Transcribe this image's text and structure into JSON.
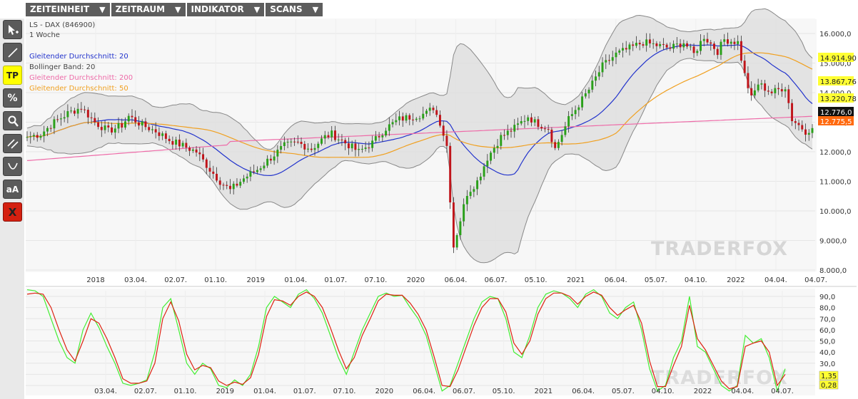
{
  "menu": [
    {
      "label": "ZEITEINHEIT",
      "icon": "triangle-down-icon"
    },
    {
      "label": "ZEITRAUM",
      "icon": "triangle-down-icon"
    },
    {
      "label": "INDIKATOR",
      "icon": "triangle-down-icon"
    },
    {
      "label": "SCANS",
      "icon": "triangle-down-icon"
    }
  ],
  "tools": [
    {
      "name": "cursor-tool",
      "icon": "cursor-plus-icon",
      "label": ""
    },
    {
      "name": "line-tool",
      "icon": "line-icon",
      "label": ""
    },
    {
      "name": "tp-tool",
      "icon": "tp-icon",
      "label": "TP"
    },
    {
      "name": "percent-tool",
      "icon": "percent-icon",
      "label": "%"
    },
    {
      "name": "zoom-tool",
      "icon": "magnifier-icon",
      "label": ""
    },
    {
      "name": "parallel-lines-tool",
      "icon": "parallel-lines-icon",
      "label": ""
    },
    {
      "name": "curve-tool",
      "icon": "curve-icon",
      "label": ""
    },
    {
      "name": "text-tool",
      "icon": "text-size-icon",
      "label": "aA"
    },
    {
      "name": "delete-tool",
      "icon": "close-icon",
      "label": "X"
    }
  ],
  "chart_data": [
    {
      "type": "candlestick",
      "title": "LS - DAX (846900)",
      "subtitle": "1 Woche",
      "legend": [
        {
          "label": "Gleitender Durchschnitt: 20",
          "color": "#2233cc"
        },
        {
          "label": "Bollinger Band: 20",
          "color": "#444444"
        },
        {
          "label": "Gleitender Durchschnitt: 200",
          "color": "#ee6ba8"
        },
        {
          "label": "Gleitender Durchschnitt: 50",
          "color": "#f0a020"
        }
      ],
      "legend_position": "top-left",
      "y_ticks": [
        "16.000,0",
        "15.000,0",
        "14.000,0",
        "13.000,0",
        "12.000,0",
        "11.000,0",
        "10.000,0",
        "9.000,0",
        "8.000,0"
      ],
      "ylim": [
        8000,
        16400
      ],
      "x_ticks": [
        "2018",
        "03.04.",
        "02.07.",
        "01.10.",
        "2019",
        "01.04.",
        "01.07.",
        "07.10.",
        "2020",
        "06.04.",
        "06.07.",
        "05.10.",
        "2021",
        "06.04.",
        "05.07.",
        "04.10.",
        "2022",
        "04.04.",
        "04.07."
      ],
      "price_labels": [
        {
          "text": "14.914,90",
          "bg": "#ffff33",
          "color": "#222222"
        },
        {
          "text": "13.867,76",
          "bg": "#ffff33",
          "color": "#222222"
        },
        {
          "text": "13.220,78",
          "bg": "#ffff33",
          "color": "#222222"
        },
        {
          "text": "12.776,0",
          "bg": "#111111",
          "color": "#ffffff"
        },
        {
          "text": "12.775,5",
          "bg": "#ff6a10",
          "color": "#ffffff"
        }
      ],
      "anchors": [
        [
          0,
          12500
        ],
        [
          4,
          12600
        ],
        [
          8,
          13000
        ],
        [
          12,
          13300
        ],
        [
          16,
          13500
        ],
        [
          20,
          13000
        ],
        [
          24,
          12700
        ],
        [
          28,
          12900
        ],
        [
          30,
          13200
        ],
        [
          34,
          12900
        ],
        [
          38,
          12700
        ],
        [
          42,
          12400
        ],
        [
          46,
          12200
        ],
        [
          50,
          12000
        ],
        [
          54,
          11400
        ],
        [
          57,
          11000
        ],
        [
          60,
          10700
        ],
        [
          64,
          11100
        ],
        [
          68,
          11400
        ],
        [
          72,
          11800
        ],
        [
          76,
          12200
        ],
        [
          80,
          12300
        ],
        [
          84,
          12100
        ],
        [
          88,
          12500
        ],
        [
          90,
          12600
        ],
        [
          94,
          12300
        ],
        [
          98,
          12000
        ],
        [
          102,
          12300
        ],
        [
          106,
          12800
        ],
        [
          110,
          13100
        ],
        [
          114,
          13200
        ],
        [
          118,
          13300
        ],
        [
          120,
          13500
        ],
        [
          122,
          13000
        ],
        [
          124,
          12200
        ],
        [
          125,
          10400
        ],
        [
          126,
          8800
        ],
        [
          128,
          9700
        ],
        [
          130,
          10600
        ],
        [
          133,
          11000
        ],
        [
          136,
          11800
        ],
        [
          140,
          12500
        ],
        [
          144,
          12800
        ],
        [
          148,
          13200
        ],
        [
          150,
          13000
        ],
        [
          154,
          12800
        ],
        [
          156,
          12100
        ],
        [
          160,
          13100
        ],
        [
          163,
          13600
        ],
        [
          166,
          14100
        ],
        [
          170,
          14900
        ],
        [
          174,
          15300
        ],
        [
          178,
          15500
        ],
        [
          182,
          15700
        ],
        [
          186,
          15600
        ],
        [
          190,
          15500
        ],
        [
          194,
          15700
        ],
        [
          197,
          15300
        ],
        [
          200,
          15900
        ],
        [
          204,
          15400
        ],
        [
          206,
          15800
        ],
        [
          210,
          15700
        ],
        [
          212,
          14600
        ],
        [
          214,
          13800
        ],
        [
          216,
          14300
        ],
        [
          220,
          14000
        ],
        [
          224,
          14200
        ],
        [
          226,
          13100
        ],
        [
          230,
          12700
        ],
        [
          232,
          12800
        ]
      ],
      "series": [
        {
          "name": "Gleitender Durchschnitt: 20",
          "color": "#2233cc",
          "role": "sma",
          "period": 20
        },
        {
          "name": "Gleitender Durchschnitt: 50",
          "color": "#f0a020",
          "role": "sma",
          "period": 50
        },
        {
          "name": "Gleitender Durchschnitt: 200",
          "color": "#ee6ba8",
          "role": "sma",
          "period": 200
        },
        {
          "name": "Bollinger Band: 20",
          "color": "#888888",
          "role": "bollinger",
          "period": 20
        }
      ]
    },
    {
      "type": "line",
      "y_ticks": [
        "90,0",
        "80,0",
        "70,0",
        "60,0",
        "50,0",
        "40,0",
        "30,0",
        "20,0",
        "10,0"
      ],
      "ylim": [
        0,
        100
      ],
      "x_ticks": [
        "03.04.",
        "02.07.",
        "01.10.",
        "2019",
        "01.04.",
        "01.07.",
        "07.10.",
        "2020",
        "06.04.",
        "06.07.",
        "05.10.",
        "2021",
        "06.04.",
        "05.07.",
        "04.10.",
        "2022",
        "04.04.",
        "04.07."
      ],
      "value_labels": [
        {
          "text": "1,35",
          "bg": "#ffff33",
          "color": "#222222"
        },
        {
          "text": "0,28",
          "bg": "#ffff33",
          "color": "#222222"
        }
      ],
      "series": [
        {
          "name": "",
          "color": "#44ee33",
          "values": [
            96,
            95,
            90,
            70,
            50,
            35,
            30,
            60,
            75,
            62,
            45,
            30,
            12,
            10,
            12,
            15,
            40,
            80,
            88,
            60,
            30,
            20,
            30,
            25,
            10,
            8,
            15,
            10,
            20,
            45,
            80,
            90,
            85,
            80,
            92,
            96,
            88,
            75,
            55,
            35,
            20,
            40,
            60,
            75,
            90,
            93,
            90,
            91,
            80,
            70,
            55,
            30,
            5,
            10,
            30,
            50,
            70,
            85,
            90,
            88,
            70,
            40,
            35,
            55,
            80,
            92,
            95,
            93,
            88,
            80,
            92,
            96,
            90,
            75,
            70,
            80,
            85,
            60,
            25,
            5,
            10,
            35,
            50,
            90,
            45,
            40,
            25,
            10,
            5,
            10,
            55,
            48,
            52,
            35,
            5,
            25
          ]
        },
        {
          "name": "",
          "color": "#dd2211",
          "values": [
            92,
            93,
            92,
            80,
            60,
            42,
            32,
            50,
            70,
            66,
            52,
            35,
            16,
            12,
            12,
            14,
            30,
            70,
            85,
            68,
            38,
            24,
            28,
            26,
            14,
            10,
            13,
            11,
            17,
            38,
            72,
            87,
            86,
            82,
            90,
            94,
            90,
            80,
            62,
            42,
            25,
            35,
            55,
            70,
            86,
            92,
            91,
            91,
            84,
            74,
            60,
            36,
            10,
            9,
            24,
            44,
            64,
            80,
            88,
            88,
            76,
            48,
            38,
            50,
            74,
            88,
            93,
            93,
            90,
            83,
            90,
            94,
            91,
            80,
            73,
            78,
            82,
            66,
            32,
            9,
            9,
            28,
            45,
            82,
            52,
            42,
            28,
            14,
            7,
            9,
            45,
            48,
            50,
            40,
            10,
            20
          ]
        }
      ]
    }
  ],
  "watermark": "TRADERFOX"
}
